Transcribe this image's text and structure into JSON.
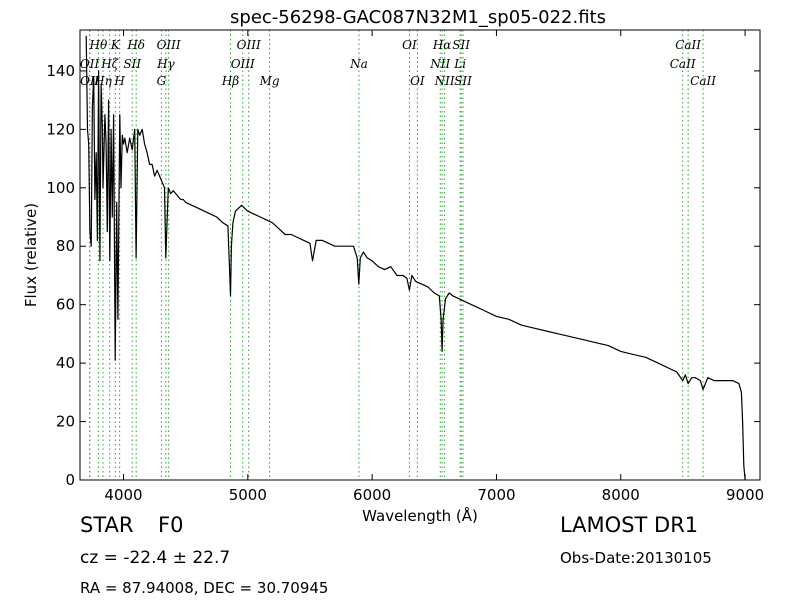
{
  "chart_data": {
    "type": "line",
    "title": "spec-56298-GAC087N32M1_sp05-022.fits",
    "xlabel": "Wavelength (Å)",
    "ylabel": "Flux (relative)",
    "xlim": [
      3650,
      9120
    ],
    "ylim": [
      0,
      154
    ],
    "xticks": [
      4000,
      5000,
      6000,
      7000,
      8000,
      9000
    ],
    "yticks": [
      0,
      20,
      40,
      60,
      80,
      100,
      120,
      140
    ],
    "grid": false,
    "line_color": "#000000",
    "marker_color": "#2ca02c",
    "series": [
      {
        "x": [
          3700,
          3710,
          3720,
          3730,
          3740,
          3750,
          3760,
          3770,
          3780,
          3790,
          3800,
          3810,
          3820,
          3830,
          3835,
          3850,
          3860,
          3870,
          3880,
          3890,
          3900,
          3910,
          3920,
          3933,
          3945,
          3955,
          3970,
          3980,
          3990,
          4000,
          4010,
          4030,
          4050,
          4070,
          4090,
          4101,
          4115,
          4130,
          4150,
          4170,
          4190,
          4210,
          4230,
          4250,
          4270,
          4290,
          4310,
          4330,
          4340,
          4345,
          4360,
          4380,
          4400,
          4420,
          4440,
          4460,
          4480,
          4500,
          4550,
          4600,
          4650,
          4700,
          4750,
          4800,
          4840,
          4855,
          4861,
          4868,
          4880,
          4900,
          4950,
          5000,
          5050,
          5100,
          5150,
          5200,
          5250,
          5300,
          5350,
          5400,
          5450,
          5500,
          5520,
          5550,
          5600,
          5650,
          5700,
          5750,
          5800,
          5850,
          5880,
          5893,
          5905,
          5930,
          5960,
          6000,
          6050,
          6100,
          6150,
          6200,
          6250,
          6280,
          6300,
          6320,
          6350,
          6400,
          6450,
          6500,
          6540,
          6555,
          6563,
          6571,
          6590,
          6620,
          6650,
          6700,
          6750,
          6800,
          6850,
          6900,
          7000,
          7100,
          7200,
          7300,
          7400,
          7500,
          7600,
          7700,
          7800,
          7900,
          8000,
          8100,
          8200,
          8300,
          8400,
          8450,
          8498,
          8520,
          8542,
          8570,
          8600,
          8640,
          8662,
          8700,
          8750,
          8800,
          8850,
          8900,
          8950,
          8970,
          8980,
          8990,
          9000
        ],
        "y": [
          152,
          120,
          115,
          85,
          80,
          128,
          138,
          96,
          112,
          82,
          140,
          75,
          135,
          120,
          100,
          125,
          115,
          85,
          130,
          75,
          120,
          90,
          125,
          41,
          95,
          55,
          125,
          100,
          118,
          115,
          117,
          112,
          117,
          113,
          120,
          76,
          120,
          118,
          120,
          115,
          112,
          108,
          108,
          104,
          106,
          104,
          102,
          100,
          76,
          82,
          100,
          98,
          99,
          98,
          97,
          96,
          96,
          95,
          94,
          93,
          92,
          91,
          90,
          88,
          87,
          70,
          63,
          80,
          88,
          92,
          94,
          92,
          91,
          90,
          89,
          88,
          86,
          84,
          84,
          83,
          82,
          81,
          75,
          82,
          82,
          81,
          80,
          80,
          80,
          80,
          76,
          67,
          76,
          78,
          76,
          75,
          73,
          72,
          73,
          70,
          70,
          69,
          65,
          70,
          68,
          67,
          66,
          64,
          63,
          55,
          44,
          55,
          62,
          64,
          63,
          62,
          61,
          60,
          59,
          58,
          56,
          55,
          53,
          52,
          51,
          50,
          49,
          48,
          47,
          46,
          44,
          43,
          42,
          40,
          38,
          37,
          34,
          36,
          33,
          35,
          35,
          34,
          31,
          35,
          34,
          34,
          34,
          34,
          33,
          30,
          20,
          5,
          0
        ]
      }
    ],
    "lines": [
      {
        "label": "OII",
        "wavelength": 3727,
        "row": 2
      },
      {
        "label": "OII",
        "wavelength": 3729,
        "row": 3
      },
      {
        "label": "Hθ",
        "wavelength": 3798,
        "row": 1
      },
      {
        "label": "Hη",
        "wavelength": 3835,
        "row": 3
      },
      {
        "label": "Hζ",
        "wavelength": 3889,
        "row": 2
      },
      {
        "label": "K",
        "wavelength": 3934,
        "row": 1
      },
      {
        "label": "H",
        "wavelength": 3969,
        "row": 3
      },
      {
        "label": "SII",
        "wavelength": 4070,
        "row": 2
      },
      {
        "label": "Hδ",
        "wavelength": 4102,
        "row": 1
      },
      {
        "label": "G",
        "wavelength": 4305,
        "row": 3
      },
      {
        "label": "Hγ",
        "wavelength": 4341,
        "row": 2
      },
      {
        "label": "OIII",
        "wavelength": 4363,
        "row": 1
      },
      {
        "label": "Hβ",
        "wavelength": 4861,
        "row": 3
      },
      {
        "label": "OIII",
        "wavelength": 4959,
        "row": 2
      },
      {
        "label": "OIII",
        "wavelength": 5007,
        "row": 1
      },
      {
        "label": "Mg",
        "wavelength": 5175,
        "row": 3
      },
      {
        "label": "Na",
        "wavelength": 5894,
        "row": 2
      },
      {
        "label": "OI",
        "wavelength": 6300,
        "row": 1
      },
      {
        "label": "OI",
        "wavelength": 6364,
        "row": 3
      },
      {
        "label": "NII",
        "wavelength": 6548,
        "row": 2
      },
      {
        "label": "Hα",
        "wavelength": 6563,
        "row": 1
      },
      {
        "label": "NII",
        "wavelength": 6583,
        "row": 3
      },
      {
        "label": "Li",
        "wavelength": 6708,
        "row": 2
      },
      {
        "label": "SII",
        "wavelength": 6716,
        "row": 1
      },
      {
        "label": "SII",
        "wavelength": 6731,
        "row": 3
      },
      {
        "label": "CaII",
        "wavelength": 8498,
        "row": 2
      },
      {
        "label": "CaII",
        "wavelength": 8542,
        "row": 1
      },
      {
        "label": "CaII",
        "wavelength": 8662,
        "row": 3
      }
    ]
  },
  "info": {
    "class_label": "STAR",
    "subclass": "F0",
    "redshift": "cz = -22.4 ± 22.7",
    "survey": "LAMOST DR1",
    "obs_date": "Obs-Date:20130105",
    "coords": "RA = 87.94008, DEC = 30.70945"
  }
}
